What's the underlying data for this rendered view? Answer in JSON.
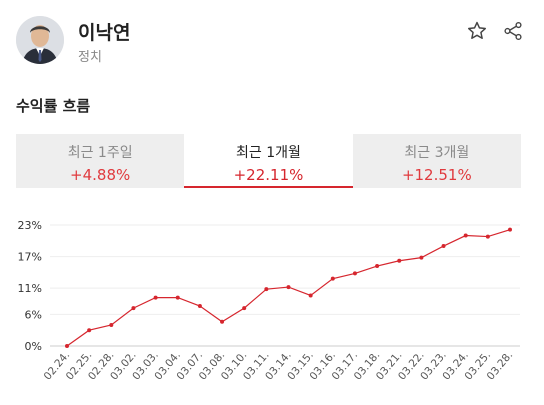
{
  "profile": {
    "name": "이낙연",
    "category": "정치"
  },
  "icons": {
    "favorite": "star-outline-icon",
    "share": "share-icon"
  },
  "section_title": "수익률 흐름",
  "tabs": [
    {
      "label": "최근 1주일",
      "value": "+4.88%",
      "active": false
    },
    {
      "label": "최근 1개월",
      "value": "+22.11%",
      "active": true
    },
    {
      "label": "최근 3개월",
      "value": "+12.51%",
      "active": false
    }
  ],
  "colors": {
    "accent": "#d6262e",
    "positive": "#e03a3e",
    "tab_bg": "#eeeeee"
  },
  "chart_data": {
    "type": "line",
    "title": "",
    "xlabel": "",
    "ylabel": "",
    "x": [
      "02.24.",
      "02.25.",
      "02.28.",
      "03.02.",
      "03.03.",
      "03.04.",
      "03.07.",
      "03.08.",
      "03.10.",
      "03.11.",
      "03.14.",
      "03.15.",
      "03.16.",
      "03.17.",
      "03.18.",
      "03.21.",
      "03.22.",
      "03.23.",
      "03.24.",
      "03.25.",
      "03.28."
    ],
    "series": [
      {
        "values": [
          0,
          3.0,
          4.0,
          7.2,
          9.2,
          9.2,
          7.6,
          4.6,
          7.2,
          10.8,
          11.2,
          9.6,
          12.8,
          13.8,
          15.2,
          16.2,
          16.8,
          19.0,
          21.0,
          20.8,
          22.11
        ]
      }
    ],
    "y_ticks": [
      0,
      6,
      11,
      17,
      23
    ],
    "y_tick_labels": [
      "0%",
      "6%",
      "11%",
      "17%",
      "23%"
    ],
    "ylim": [
      0,
      23
    ],
    "grid": true,
    "line_color": "#d6262e"
  }
}
